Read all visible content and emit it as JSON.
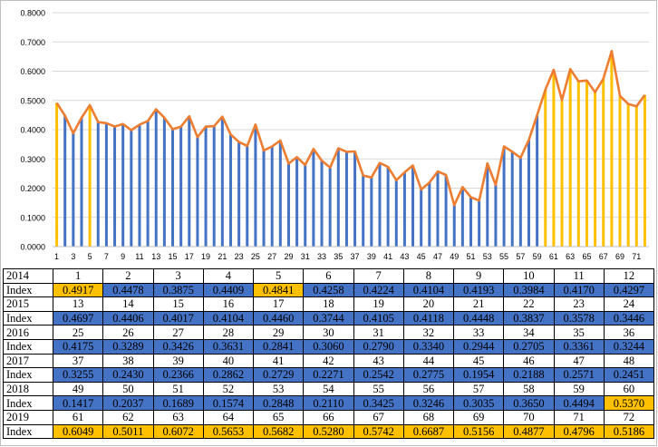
{
  "colors": {
    "bar_default": "#4472C4",
    "bar_highlight": "#FFC000",
    "line": "#ED7D31",
    "grid": "#d9d9d9",
    "axis": "#bfbfbf"
  },
  "chart_data": {
    "type": "bar",
    "overlay_line": true,
    "x": [
      1,
      2,
      3,
      4,
      5,
      6,
      7,
      8,
      9,
      10,
      11,
      12,
      13,
      14,
      15,
      16,
      17,
      18,
      19,
      20,
      21,
      22,
      23,
      24,
      25,
      26,
      27,
      28,
      29,
      30,
      31,
      32,
      33,
      34,
      35,
      36,
      37,
      38,
      39,
      40,
      41,
      42,
      43,
      44,
      45,
      46,
      47,
      48,
      49,
      50,
      51,
      52,
      53,
      54,
      55,
      56,
      57,
      58,
      59,
      60,
      61,
      62,
      63,
      64,
      65,
      66,
      67,
      68,
      69,
      70,
      71,
      72
    ],
    "values": [
      0.4917,
      0.4478,
      0.3875,
      0.4409,
      0.4841,
      0.4258,
      0.4224,
      0.4104,
      0.4193,
      0.3984,
      0.417,
      0.4297,
      0.4697,
      0.4406,
      0.4017,
      0.4104,
      0.446,
      0.3744,
      0.4105,
      0.4118,
      0.4448,
      0.3837,
      0.3578,
      0.3446,
      0.4175,
      0.3289,
      0.3426,
      0.3631,
      0.2841,
      0.306,
      0.279,
      0.334,
      0.2944,
      0.2705,
      0.3361,
      0.3244,
      0.3255,
      0.243,
      0.2366,
      0.2862,
      0.2729,
      0.2271,
      0.2542,
      0.2775,
      0.1954,
      0.2188,
      0.2571,
      0.2451,
      0.1417,
      0.2037,
      0.1689,
      0.1574,
      0.2848,
      0.211,
      0.3425,
      0.3246,
      0.3035,
      0.365,
      0.4494,
      0.537,
      0.6049,
      0.5011,
      0.6072,
      0.5653,
      0.5682,
      0.528,
      0.5742,
      0.6687,
      0.5156,
      0.4877,
      0.4796,
      0.5186
    ],
    "highlighted": [
      1,
      5,
      60,
      61,
      62,
      63,
      64,
      65,
      66,
      67,
      68,
      69,
      70,
      71,
      72
    ],
    "xtick_labels": [
      "1",
      "3",
      "5",
      "7",
      "9",
      "11",
      "13",
      "15",
      "17",
      "19",
      "21",
      "23",
      "25",
      "27",
      "29",
      "31",
      "33",
      "35",
      "37",
      "39",
      "41",
      "43",
      "45",
      "47",
      "49",
      "51",
      "53",
      "55",
      "57",
      "59",
      "61",
      "63",
      "65",
      "67",
      "69",
      "71"
    ],
    "ytick_labels": [
      "0.0000",
      "0.1000",
      "0.2000",
      "0.3000",
      "0.4000",
      "0.5000",
      "0.6000",
      "0.7000",
      "0.8000"
    ],
    "ylim": [
      0,
      0.8
    ],
    "grid": true,
    "title": "",
    "xlabel": "",
    "ylabel": ""
  },
  "table": {
    "years": [
      "2014",
      "2015",
      "2016",
      "2017",
      "2018",
      "2019"
    ],
    "index_label": "Index",
    "rows": [
      {
        "nums": [
          "1",
          "2",
          "3",
          "4",
          "5",
          "6",
          "7",
          "8",
          "9",
          "10",
          "11",
          "12"
        ],
        "values": [
          "0.4917",
          "0.4478",
          "0.3875",
          "0.4409",
          "0.4841",
          "0.4258",
          "0.4224",
          "0.4104",
          "0.4193",
          "0.3984",
          "0.4170",
          "0.4297"
        ],
        "highlight": [
          true,
          false,
          false,
          false,
          true,
          false,
          false,
          false,
          false,
          false,
          false,
          false
        ]
      },
      {
        "nums": [
          "13",
          "14",
          "15",
          "16",
          "17",
          "18",
          "19",
          "20",
          "21",
          "22",
          "23",
          "24"
        ],
        "values": [
          "0.4697",
          "0.4406",
          "0.4017",
          "0.4104",
          "0.4460",
          "0.3744",
          "0.4105",
          "0.4118",
          "0.4448",
          "0.3837",
          "0.3578",
          "0.3446"
        ],
        "highlight": [
          false,
          false,
          false,
          false,
          false,
          false,
          false,
          false,
          false,
          false,
          false,
          false
        ]
      },
      {
        "nums": [
          "25",
          "26",
          "27",
          "28",
          "29",
          "30",
          "31",
          "32",
          "33",
          "34",
          "35",
          "36"
        ],
        "values": [
          "0.4175",
          "0.3289",
          "0.3426",
          "0.3631",
          "0.2841",
          "0.3060",
          "0.2790",
          "0.3340",
          "0.2944",
          "0.2705",
          "0.3361",
          "0.3244"
        ],
        "highlight": [
          false,
          false,
          false,
          false,
          false,
          false,
          false,
          false,
          false,
          false,
          false,
          false
        ]
      },
      {
        "nums": [
          "37",
          "38",
          "39",
          "40",
          "41",
          "42",
          "43",
          "44",
          "45",
          "46",
          "47",
          "48"
        ],
        "values": [
          "0.3255",
          "0.2430",
          "0.2366",
          "0.2862",
          "0.2729",
          "0.2271",
          "0.2542",
          "0.2775",
          "0.1954",
          "0.2188",
          "0.2571",
          "0.2451"
        ],
        "highlight": [
          false,
          false,
          false,
          false,
          false,
          false,
          false,
          false,
          false,
          false,
          false,
          false
        ]
      },
      {
        "nums": [
          "49",
          "50",
          "51",
          "52",
          "53",
          "54",
          "55",
          "56",
          "57",
          "58",
          "59",
          "60"
        ],
        "values": [
          "0.1417",
          "0.2037",
          "0.1689",
          "0.1574",
          "0.2848",
          "0.2110",
          "0.3425",
          "0.3246",
          "0.3035",
          "0.3650",
          "0.4494",
          "0.5370"
        ],
        "highlight": [
          false,
          false,
          false,
          false,
          false,
          false,
          false,
          false,
          false,
          false,
          false,
          true
        ]
      },
      {
        "nums": [
          "61",
          "62",
          "63",
          "64",
          "65",
          "66",
          "67",
          "68",
          "69",
          "70",
          "71",
          "72"
        ],
        "values": [
          "0.6049",
          "0.5011",
          "0.6072",
          "0.5653",
          "0.5682",
          "0.5280",
          "0.5742",
          "0.6687",
          "0.5156",
          "0.4877",
          "0.4796",
          "0.5186"
        ],
        "highlight": [
          true,
          true,
          true,
          true,
          true,
          true,
          true,
          true,
          true,
          true,
          true,
          true
        ]
      }
    ]
  }
}
